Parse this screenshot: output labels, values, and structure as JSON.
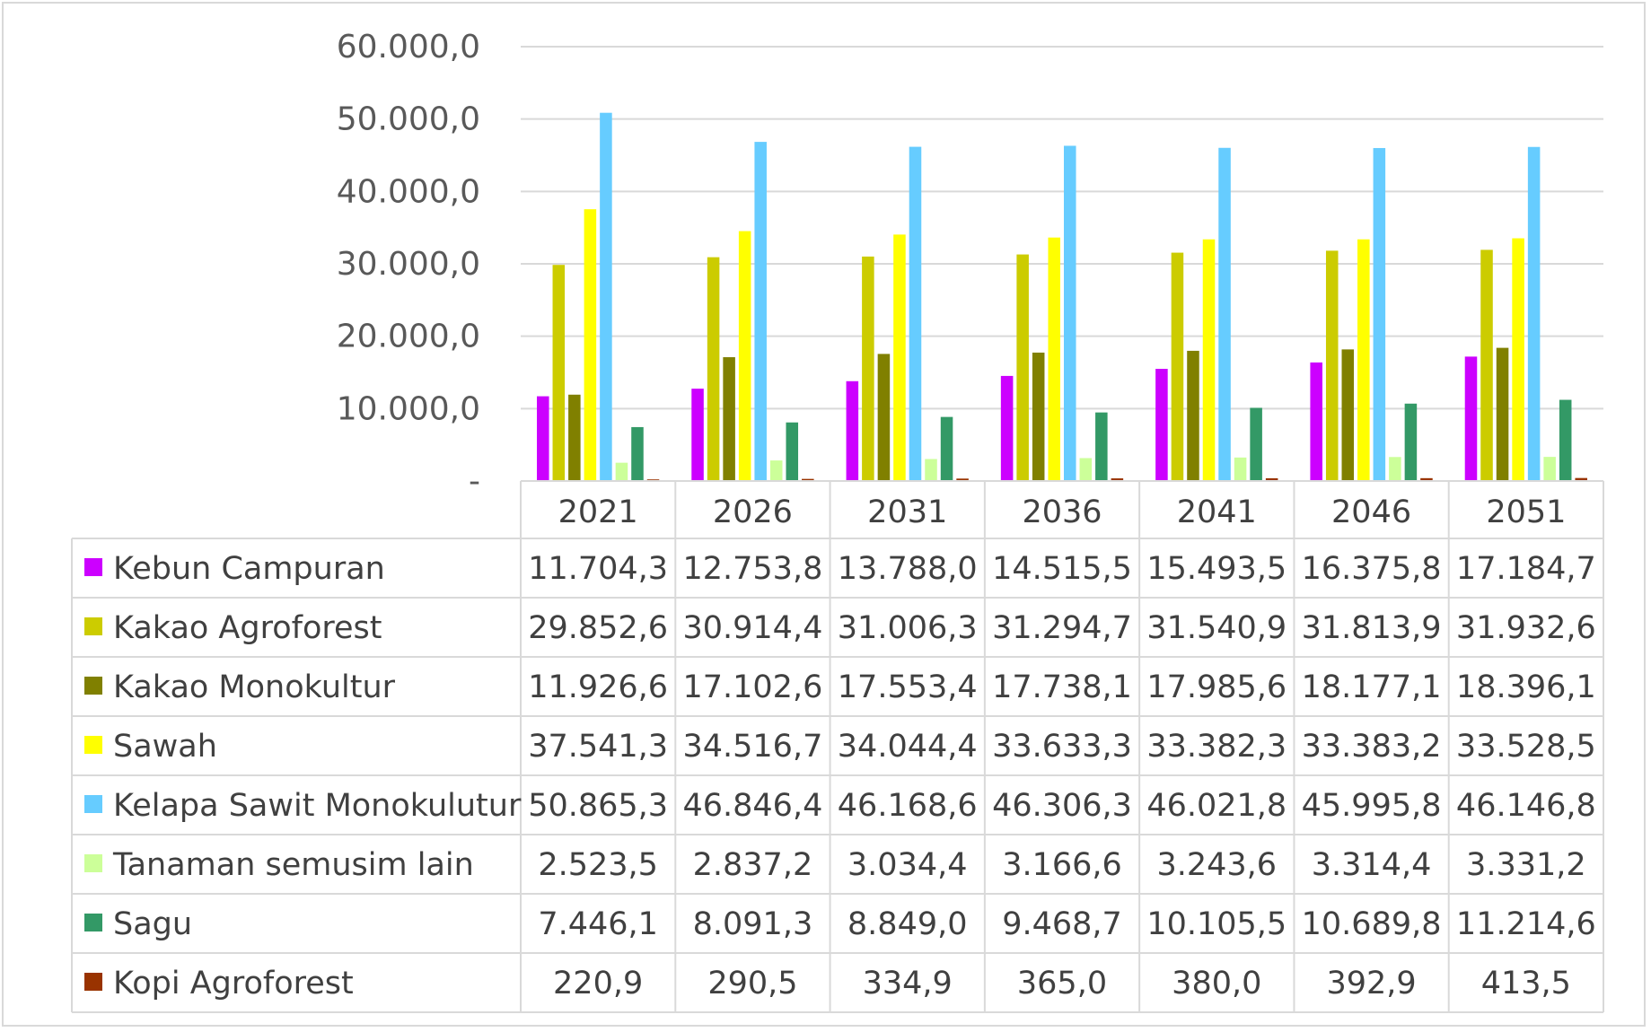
{
  "chart_data": {
    "type": "bar",
    "title": "",
    "xlabel": "",
    "ylabel": "",
    "ylim": [
      0,
      60000
    ],
    "yticks": [
      "-",
      "10.000,0",
      "20.000,0",
      "30.000,0",
      "40.000,0",
      "50.000,0",
      "60.000,0"
    ],
    "grid": true,
    "legend": "data-table",
    "categories": [
      "2021",
      "2026",
      "2031",
      "2036",
      "2041",
      "2046",
      "2051"
    ],
    "series": [
      {
        "name": "Kebun Campuran",
        "color": "#cc00ff",
        "values": [
          11704.3,
          12753.8,
          13788.0,
          14515.5,
          15493.5,
          16375.8,
          17184.7
        ],
        "labels": [
          "11.704,3",
          "12.753,8",
          "13.788,0",
          "14.515,5",
          "15.493,5",
          "16.375,8",
          "17.184,7"
        ]
      },
      {
        "name": "Kakao Agroforest",
        "color": "#cccc00",
        "values": [
          29852.6,
          30914.4,
          31006.3,
          31294.7,
          31540.9,
          31813.9,
          31932.6
        ],
        "labels": [
          "29.852,6",
          "30.914,4",
          "31.006,3",
          "31.294,7",
          "31.540,9",
          "31.813,9",
          "31.932,6"
        ]
      },
      {
        "name": "Kakao Monokultur",
        "color": "#808000",
        "values": [
          11926.6,
          17102.6,
          17553.4,
          17738.1,
          17985.6,
          18177.1,
          18396.1
        ],
        "labels": [
          "11.926,6",
          "17.102,6",
          "17.553,4",
          "17.738,1",
          "17.985,6",
          "18.177,1",
          "18.396,1"
        ]
      },
      {
        "name": "Sawah",
        "color": "#ffff00",
        "values": [
          37541.3,
          34516.7,
          34044.4,
          33633.3,
          33382.3,
          33383.2,
          33528.5
        ],
        "labels": [
          "37.541,3",
          "34.516,7",
          "34.044,4",
          "33.633,3",
          "33.382,3",
          "33.383,2",
          "33.528,5"
        ]
      },
      {
        "name": "Kelapa Sawit Monokulutur",
        "color": "#66ccff",
        "values": [
          50865.3,
          46846.4,
          46168.6,
          46306.3,
          46021.8,
          45995.8,
          46146.8
        ],
        "labels": [
          "50.865,3",
          "46.846,4",
          "46.168,6",
          "46.306,3",
          "46.021,8",
          "45.995,8",
          "46.146,8"
        ]
      },
      {
        "name": "Tanaman semusim lain",
        "color": "#ccff99",
        "values": [
          2523.5,
          2837.2,
          3034.4,
          3166.6,
          3243.6,
          3314.4,
          3331.2
        ],
        "labels": [
          "2.523,5",
          "2.837,2",
          "3.034,4",
          "3.166,6",
          "3.243,6",
          "3.314,4",
          "3.331,2"
        ]
      },
      {
        "name": "Sagu",
        "color": "#339966",
        "values": [
          7446.1,
          8091.3,
          8849.0,
          9468.7,
          10105.5,
          10689.8,
          11214.6
        ],
        "labels": [
          "7.446,1",
          "8.091,3",
          "8.849,0",
          "9.468,7",
          "10.105,5",
          "10.689,8",
          "11.214,6"
        ]
      },
      {
        "name": "Kopi Agroforest",
        "color": "#993300",
        "values": [
          220.9,
          290.5,
          334.9,
          365.0,
          380.0,
          392.9,
          413.5
        ],
        "labels": [
          "220,9",
          "290,5",
          "334,9",
          "365,0",
          "380,0",
          "392,9",
          "413,5"
        ]
      }
    ]
  }
}
